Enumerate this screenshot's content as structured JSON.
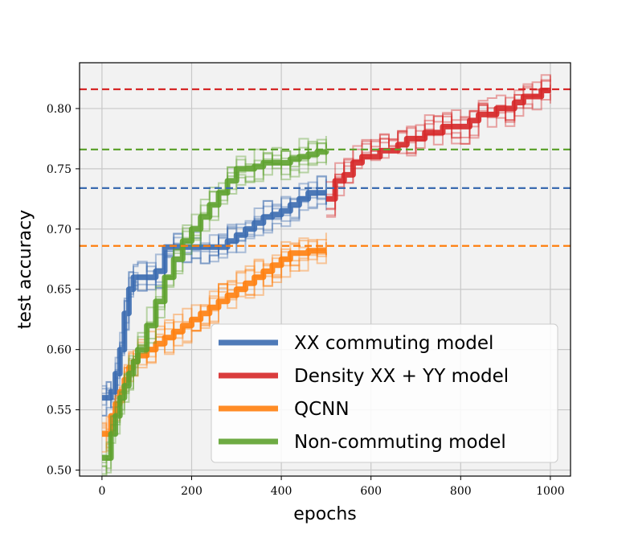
{
  "chart_data": {
    "type": "line",
    "title": "",
    "xlabel": "epochs",
    "ylabel": "test accuracy",
    "xlim": [
      -50,
      1045
    ],
    "ylim": [
      0.495,
      0.838
    ],
    "x_ticks": [
      0,
      200,
      400,
      600,
      800,
      1000
    ],
    "x_tick_labels": [
      "0",
      "200",
      "400",
      "600",
      "800",
      "1000"
    ],
    "y_ticks": [
      0.5,
      0.55,
      0.6,
      0.65,
      0.7,
      0.75,
      0.8
    ],
    "y_tick_labels": [
      "0.50",
      "0.55",
      "0.60",
      "0.65",
      "0.70",
      "0.75",
      "0.80"
    ],
    "grid": true,
    "legend_position": "lower-right",
    "series": [
      {
        "name": "XX commuting model",
        "color": "#3b6bb0",
        "x": [
          0,
          10,
          20,
          30,
          40,
          50,
          60,
          70,
          80,
          100,
          120,
          140,
          160,
          180,
          200,
          220,
          240,
          260,
          280,
          300,
          320,
          340,
          360,
          380,
          400,
          420,
          440,
          460,
          480,
          500
        ],
        "y": [
          0.56,
          0.56,
          0.565,
          0.58,
          0.6,
          0.63,
          0.65,
          0.66,
          0.66,
          0.66,
          0.665,
          0.685,
          0.685,
          0.685,
          0.685,
          0.685,
          0.685,
          0.685,
          0.69,
          0.695,
          0.7,
          0.705,
          0.71,
          0.712,
          0.715,
          0.72,
          0.725,
          0.73,
          0.73,
          0.73
        ],
        "reference_y": 0.734
      },
      {
        "name": "Density XX + YY model",
        "color": "#d62728",
        "x": [
          500,
          520,
          540,
          560,
          580,
          600,
          620,
          640,
          660,
          680,
          700,
          720,
          740,
          760,
          780,
          800,
          820,
          840,
          860,
          880,
          900,
          920,
          940,
          960,
          980,
          1000
        ],
        "y": [
          0.725,
          0.74,
          0.745,
          0.755,
          0.76,
          0.76,
          0.765,
          0.765,
          0.77,
          0.775,
          0.775,
          0.78,
          0.78,
          0.785,
          0.785,
          0.785,
          0.79,
          0.795,
          0.795,
          0.8,
          0.8,
          0.805,
          0.81,
          0.81,
          0.815,
          0.815
        ],
        "reference_y": 0.816
      },
      {
        "name": "QCNN",
        "color": "#ff7f0e",
        "x": [
          0,
          10,
          20,
          30,
          40,
          50,
          60,
          70,
          80,
          100,
          120,
          140,
          160,
          180,
          200,
          220,
          240,
          260,
          280,
          300,
          320,
          340,
          360,
          380,
          400,
          420,
          440,
          460,
          480,
          500
        ],
        "y": [
          0.53,
          0.53,
          0.545,
          0.555,
          0.565,
          0.575,
          0.585,
          0.59,
          0.595,
          0.6,
          0.605,
          0.61,
          0.615,
          0.62,
          0.625,
          0.63,
          0.635,
          0.64,
          0.645,
          0.65,
          0.655,
          0.66,
          0.665,
          0.67,
          0.675,
          0.68,
          0.68,
          0.682,
          0.682,
          0.682
        ],
        "reference_y": 0.686
      },
      {
        "name": "Non-commuting model",
        "color": "#5ea22f",
        "x": [
          0,
          10,
          20,
          30,
          40,
          50,
          60,
          70,
          80,
          100,
          120,
          140,
          160,
          180,
          200,
          220,
          240,
          260,
          280,
          300,
          320,
          340,
          360,
          380,
          400,
          420,
          440,
          460,
          480,
          500
        ],
        "y": [
          0.51,
          0.51,
          0.53,
          0.545,
          0.56,
          0.57,
          0.58,
          0.59,
          0.6,
          0.62,
          0.64,
          0.66,
          0.675,
          0.69,
          0.7,
          0.71,
          0.72,
          0.73,
          0.74,
          0.75,
          0.75,
          0.752,
          0.755,
          0.755,
          0.755,
          0.758,
          0.76,
          0.762,
          0.764,
          0.765
        ],
        "reference_y": 0.766
      }
    ]
  }
}
